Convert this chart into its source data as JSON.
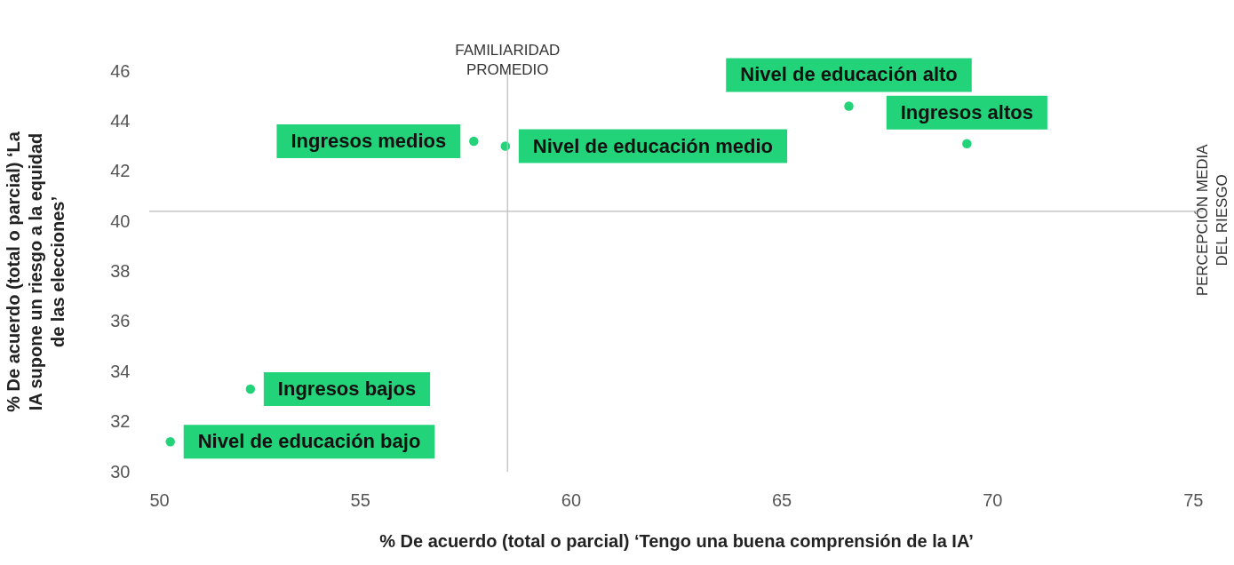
{
  "chart_data": {
    "type": "scatter",
    "xlabel": "% De acuerdo (total o parcial) ‘Tengo una buena comprensión de la IA’",
    "ylabel": "% De acuerdo (total o parcial) ‘La IA supone un riesgo a la equidad de las elecciones’",
    "xlim": [
      50,
      75
    ],
    "xticks": [
      50,
      55,
      60,
      65,
      70,
      75
    ],
    "ylim": [
      30,
      46
    ],
    "yticks": [
      30,
      32,
      34,
      36,
      38,
      40,
      42,
      44,
      46
    ],
    "grid": false,
    "legend": false,
    "marker": "circle",
    "series": [
      {
        "name": "Nivel de educación alto",
        "color": "#22d37a",
        "x": [
          66.6
        ],
        "values": [
          44.6
        ]
      },
      {
        "name": "Ingresos altos",
        "color": "#22d37a",
        "x": [
          69.4
        ],
        "values": [
          43.1
        ]
      },
      {
        "name": "Ingresos medios",
        "color": "#22d37a",
        "x": [
          57.7
        ],
        "values": [
          43.2
        ]
      },
      {
        "name": "Nivel de educación medio",
        "color": "#22d37a",
        "x": [
          58.45
        ],
        "values": [
          43.0
        ]
      },
      {
        "name": "Ingresos bajos",
        "color": "#22d37a",
        "x": [
          52.4
        ],
        "values": [
          33.3
        ]
      },
      {
        "name": "Nivel de educación bajo",
        "color": "#22d37a",
        "x": [
          50.5
        ],
        "values": [
          31.2
        ]
      }
    ],
    "ref_lines": [
      {
        "axis": "x",
        "value": 58.5,
        "label": "FAMILIARIDAD PROMEDIO",
        "color": "#bbbbbb"
      },
      {
        "axis": "y",
        "value": 40.4,
        "label": "PERCEPCIÓN MEDIA DEL RIESGO",
        "color": "#bbbbbb"
      }
    ]
  }
}
